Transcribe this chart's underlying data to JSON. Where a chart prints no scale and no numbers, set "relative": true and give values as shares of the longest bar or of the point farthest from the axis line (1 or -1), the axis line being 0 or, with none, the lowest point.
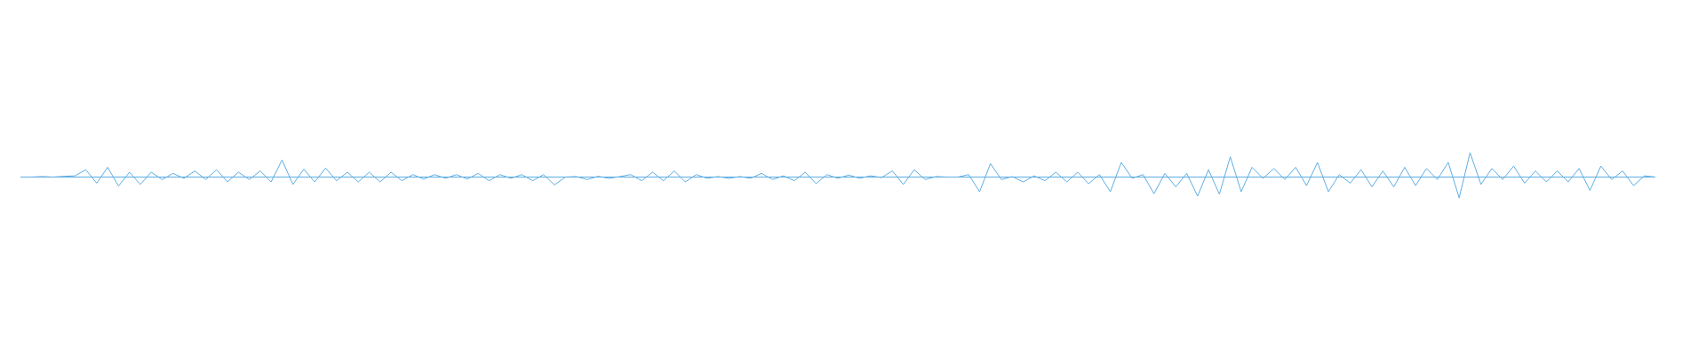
{
  "chart_data": {
    "type": "line",
    "relative": true,
    "color": "#5dade2",
    "marker": "none",
    "ref_lines": [
      {
        "axis": "y",
        "value": 0
      }
    ],
    "categories": [
      null,
      null,
      null,
      null,
      null,
      null,
      null,
      null,
      null,
      null,
      null,
      null,
      null,
      null,
      null,
      null,
      null,
      null,
      null,
      null,
      null,
      null,
      null,
      null,
      null,
      null,
      null,
      null,
      null,
      null,
      null,
      null,
      null,
      null,
      null,
      null,
      null,
      null,
      null,
      null,
      null,
      null,
      null,
      null,
      null,
      null,
      null,
      null,
      null,
      null,
      null,
      null,
      null,
      null,
      null,
      null,
      null,
      null,
      null,
      null,
      null,
      null,
      null,
      null,
      null,
      null,
      null,
      null,
      null,
      null,
      null,
      null,
      null,
      null,
      null,
      null,
      null,
      null,
      null,
      null,
      null,
      null,
      null,
      null,
      null,
      null,
      null,
      null,
      null,
      null,
      null,
      null,
      null,
      null,
      null,
      null,
      null,
      null,
      null,
      null,
      null,
      null,
      null,
      null,
      null,
      null,
      null,
      null,
      null,
      null,
      null,
      null,
      null,
      null,
      null,
      null,
      null,
      null,
      null,
      null,
      null,
      null,
      null,
      null,
      null,
      null,
      null,
      null,
      null,
      null,
      null,
      null,
      null,
      null,
      null,
      null,
      null,
      null,
      null,
      null,
      null,
      null,
      null,
      null,
      null,
      null,
      null,
      null,
      null,
      null,
      null
    ],
    "values": [
      0,
      0,
      0.02,
      0,
      0.03,
      0.05,
      0.3,
      -0.25,
      0.4,
      -0.37,
      0.2,
      -0.3,
      0.2,
      -0.1,
      0.15,
      -0.05,
      0.25,
      -0.1,
      0.3,
      -0.2,
      0.2,
      -0.1,
      0.25,
      -0.2,
      0.7,
      -0.3,
      0.32,
      -0.2,
      0.37,
      -0.15,
      0.2,
      -0.2,
      0.2,
      -0.2,
      0.2,
      -0.15,
      0.1,
      -0.08,
      0.1,
      -0.05,
      0.1,
      -0.08,
      0.15,
      -0.15,
      0.1,
      -0.05,
      0.1,
      -0.15,
      0.1,
      -0.32,
      0,
      0.02,
      -0.1,
      0.03,
      -0.05,
      0.02,
      0.1,
      -0.15,
      0.2,
      -0.15,
      0.25,
      -0.2,
      0.1,
      -0.05,
      0.02,
      -0.05,
      0.02,
      -0.05,
      0.15,
      -0.1,
      0.05,
      -0.15,
      0.2,
      -0.27,
      0.1,
      -0.05,
      0.08,
      -0.05,
      0.05,
      -0.02,
      0.25,
      -0.3,
      0.3,
      -0.1,
      0.02,
      0,
      0,
      0.1,
      -0.6,
      0.55,
      -0.1,
      0.02,
      -0.2,
      0.05,
      -0.15,
      0.2,
      -0.2,
      0.2,
      -0.27,
      0.1,
      -0.6,
      0.6,
      -0.05,
      0.1,
      -0.68,
      0.15,
      -0.4,
      0.15,
      -0.78,
      0.3,
      -0.7,
      0.83,
      -0.6,
      0.4,
      -0.05,
      0.35,
      -0.1,
      0.4,
      -0.35,
      0.6,
      -0.6,
      0.1,
      -0.25,
      0.3,
      -0.4,
      0.25,
      -0.4,
      0.4,
      -0.35,
      0.35,
      -0.1,
      0.6,
      -0.85,
      1,
      -0.3,
      0.35,
      -0.1,
      0.45,
      -0.25,
      0.25,
      -0.2,
      0.25,
      -0.2,
      0.35,
      -0.55,
      0.45,
      -0.1,
      0.25,
      -0.35,
      0.05,
      0
    ]
  }
}
